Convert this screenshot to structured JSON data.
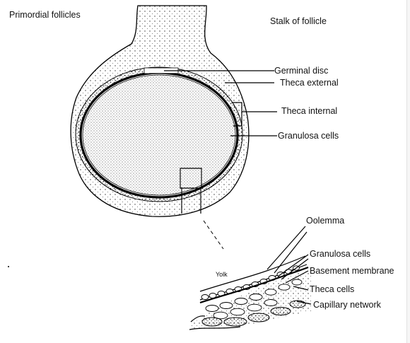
{
  "labels": {
    "primordial_follicles": "Primordial follicles",
    "stalk_of_follicle": "Stalk of follicle",
    "germinal_disc": "Germinal disc",
    "theca_external": "Theca external",
    "theca_internal": "Theca internal",
    "granulosa_cells_top": "Granulosa cells",
    "oolemma": "Oolemma",
    "granulosa_cells_bottom": "Granulosa cells",
    "basement_membrane": "Basement membrane",
    "theca_cells": "Theca cells",
    "capillary_network": "Capillary network",
    "yolk": "Yolk"
  },
  "colors": {
    "ink": "#000000",
    "background": "#ffffff"
  }
}
